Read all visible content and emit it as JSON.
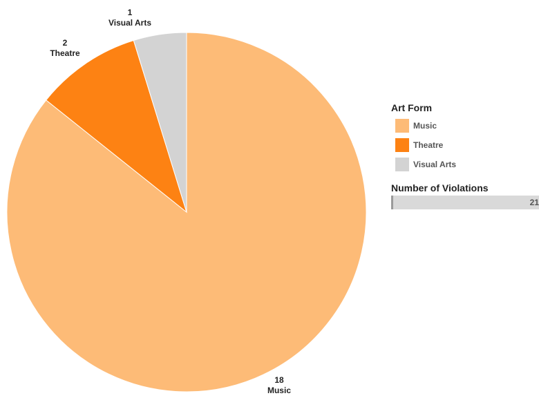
{
  "chart_data": {
    "type": "pie",
    "categories": [
      "Music",
      "Theatre",
      "Visual Arts"
    ],
    "values": [
      18,
      2,
      1
    ],
    "colors": [
      "#fdbb77",
      "#fd8213",
      "#d3d3d3"
    ],
    "start_angle_deg": 0,
    "direction": "clockwise",
    "legend": {
      "title": "Art Form",
      "placement": "right",
      "items": [
        {
          "label": "Music",
          "color": "#fdbb77"
        },
        {
          "label": "Theatre",
          "color": "#fd8213"
        },
        {
          "label": "Visual Arts",
          "color": "#d3d3d3"
        }
      ]
    },
    "size_legend": {
      "title": "Number of Violations",
      "value": "21"
    }
  }
}
